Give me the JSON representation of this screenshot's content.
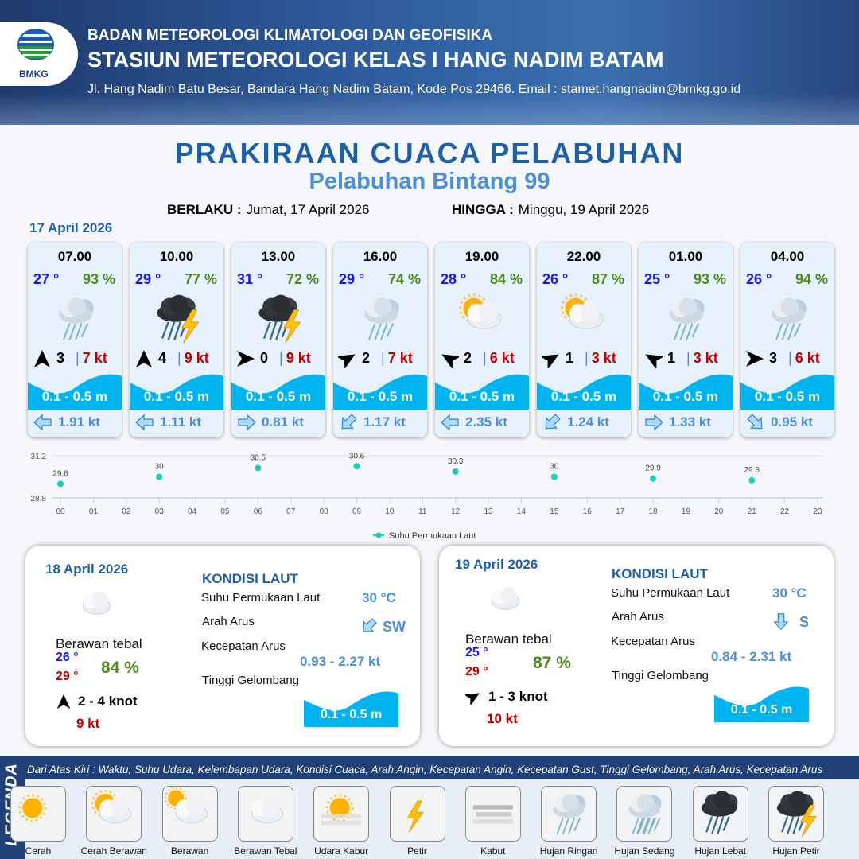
{
  "header": {
    "agency": "BADAN METEOROLOGI KLIMATOLOGI DAN GEOFISIKA",
    "station": "STASIUN METEOROLOGI KELAS I HANG NADIM BATAM",
    "address": "Jl. Hang Nadim Batu Besar, Bandara Hang Nadim Batam, Kode Pos 29466. Email : stamet.hangnadim@bmkg.go.id",
    "logo_text": "BMKG"
  },
  "title": "PRAKIRAAN CUACA PELABUHAN",
  "subtitle": "Pelabuhan Bintang 99",
  "validity": {
    "from_label": "BERLAKU :",
    "from": "Jumat, 17 April 2026",
    "to_label": "HINGGA :",
    "to": "Minggu, 19 April 2026"
  },
  "day1": {
    "date": "17 April 2026",
    "forecasts": [
      {
        "time": "07.00",
        "temp": "27 °",
        "hum": "93 %",
        "weather": "hujan-ringan",
        "wind_dir_deg": 0,
        "wind": "3",
        "gust": "7 kt",
        "wave": "0.1 - 0.5 m",
        "current_dir_deg": 270,
        "current": "1.91 kt"
      },
      {
        "time": "10.00",
        "temp": "29 °",
        "hum": "77 %",
        "weather": "hujan-petir",
        "wind_dir_deg": 0,
        "wind": "4",
        "gust": "9 kt",
        "wave": "0.1 - 0.5 m",
        "current_dir_deg": 270,
        "current": "1.11 kt"
      },
      {
        "time": "13.00",
        "temp": "31 °",
        "hum": "72 %",
        "weather": "hujan-petir",
        "wind_dir_deg": 90,
        "wind": "0",
        "gust": "9 kt",
        "wave": "0.1 - 0.5 m",
        "current_dir_deg": 90,
        "current": "0.81 kt"
      },
      {
        "time": "16.00",
        "temp": "29 °",
        "hum": "74 %",
        "weather": "hujan-ringan",
        "wind_dir_deg": 60,
        "wind": "2",
        "gust": "7 kt",
        "wave": "0.1 - 0.5 m",
        "current_dir_deg": 225,
        "current": "1.17 kt"
      },
      {
        "time": "19.00",
        "temp": "28 °",
        "hum": "84 %",
        "weather": "cerah-berawan",
        "wind_dir_deg": 300,
        "wind": "2",
        "gust": "6 kt",
        "wave": "0.1 - 0.5 m",
        "current_dir_deg": 270,
        "current": "2.35 kt"
      },
      {
        "time": "22.00",
        "temp": "26 °",
        "hum": "87 %",
        "weather": "cerah-berawan",
        "wind_dir_deg": 60,
        "wind": "1",
        "gust": "3 kt",
        "wave": "0.1 - 0.5 m",
        "current_dir_deg": 225,
        "current": "1.24 kt"
      },
      {
        "time": "01.00",
        "temp": "25 °",
        "hum": "93 %",
        "weather": "hujan-ringan",
        "wind_dir_deg": 300,
        "wind": "1",
        "gust": "3 kt",
        "wave": "0.1 - 0.5 m",
        "current_dir_deg": 90,
        "current": "1.33 kt"
      },
      {
        "time": "04.00",
        "temp": "26 °",
        "hum": "94 %",
        "weather": "hujan-ringan",
        "wind_dir_deg": 90,
        "wind": "3",
        "gust": "6 kt",
        "wave": "0.1 - 0.5 m",
        "current_dir_deg": 135,
        "current": "0.95 kt"
      }
    ]
  },
  "chart_data": {
    "type": "scatter",
    "x": [
      "00",
      "03",
      "06",
      "09",
      "12",
      "15",
      "18",
      "21"
    ],
    "values": [
      29.6,
      30.0,
      30.5,
      30.6,
      30.3,
      30.0,
      29.9,
      29.8
    ],
    "x_ticks": [
      "00",
      "01",
      "02",
      "03",
      "04",
      "05",
      "06",
      "07",
      "08",
      "09",
      "10",
      "11",
      "12",
      "13",
      "14",
      "15",
      "16",
      "17",
      "18",
      "19",
      "20",
      "21",
      "22",
      "23"
    ],
    "y_ticks": [
      "28.8",
      "31.2"
    ],
    "ylim": [
      28.8,
      31.2
    ],
    "series_name": "Suhu Permukaan Laut",
    "color": "#1ccfb8",
    "legend": "bottom"
  },
  "days": [
    {
      "date": "18 April 2026",
      "condition": "Berawan tebal",
      "tmin": "26 °",
      "tmax": "29 °",
      "hum": "84 %",
      "wind_dir_deg": 0,
      "wind": "2  - 4 knot",
      "gust": "9 kt",
      "sea_title": "KONDISI LAUT",
      "sst_label": "Suhu Permukaan Laut",
      "sst": "30 °C",
      "arus_label": "Arah Arus",
      "arus": "SW",
      "arus_deg": 225,
      "speed_label": "Kecepatan Arus",
      "speed": "0.93  - 2.27 kt",
      "wave_label": "Tinggi Gelombang",
      "wave": "0.1 - 0.5 m"
    },
    {
      "date": "19 April 2026",
      "condition": "Berawan tebal",
      "tmin": "25 °",
      "tmax": "29 °",
      "hum": "87 %",
      "wind_dir_deg": 60,
      "wind": "1  - 3 knot",
      "gust": "10 kt",
      "sea_title": "KONDISI LAUT",
      "sst_label": "Suhu Permukaan Laut",
      "sst": "30 °C",
      "arus_label": "Arah Arus",
      "arus": "S",
      "arus_deg": 180,
      "speed_label": "Kecepatan Arus",
      "speed": "0.84  - 2.31 kt",
      "wave_label": "Tinggi Gelombang",
      "wave": "0.1 - 0.5 m"
    }
  ],
  "legend": {
    "label": "LEGENDA",
    "description": "Dari Atas Kiri : Waktu, Suhu Udara, Kelembapan Udara, Kondisi Cuaca, Arah Angin, Kecepatan Angin, Kecepatan Gust, Tinggi Gelombang, Arah Arus, Kecepatan Arus",
    "items": [
      {
        "label": "Cerah",
        "icon": "cerah"
      },
      {
        "label": "Cerah Berawan",
        "icon": "cerah-berawan"
      },
      {
        "label": "Berawan",
        "icon": "berawan"
      },
      {
        "label": "Berawan Tebal",
        "icon": "berawan-tebal"
      },
      {
        "label": "Udara Kabur",
        "icon": "udara-kabur"
      },
      {
        "label": "Petir",
        "icon": "petir"
      },
      {
        "label": "Kabut",
        "icon": "kabut"
      },
      {
        "label": "Hujan Ringan",
        "icon": "hujan-ringan"
      },
      {
        "label": "Hujan Sedang",
        "icon": "hujan-sedang"
      },
      {
        "label": "Hujan Lebat",
        "icon": "hujan-lebat"
      },
      {
        "label": "Hujan Petir",
        "icon": "hujan-petir"
      }
    ]
  },
  "colors": {
    "temp": "#1515ff",
    "humidity": "#4c8a1e",
    "gust": "#c00000",
    "wave": "#00b4f0",
    "accent": "#1d5fa8"
  }
}
